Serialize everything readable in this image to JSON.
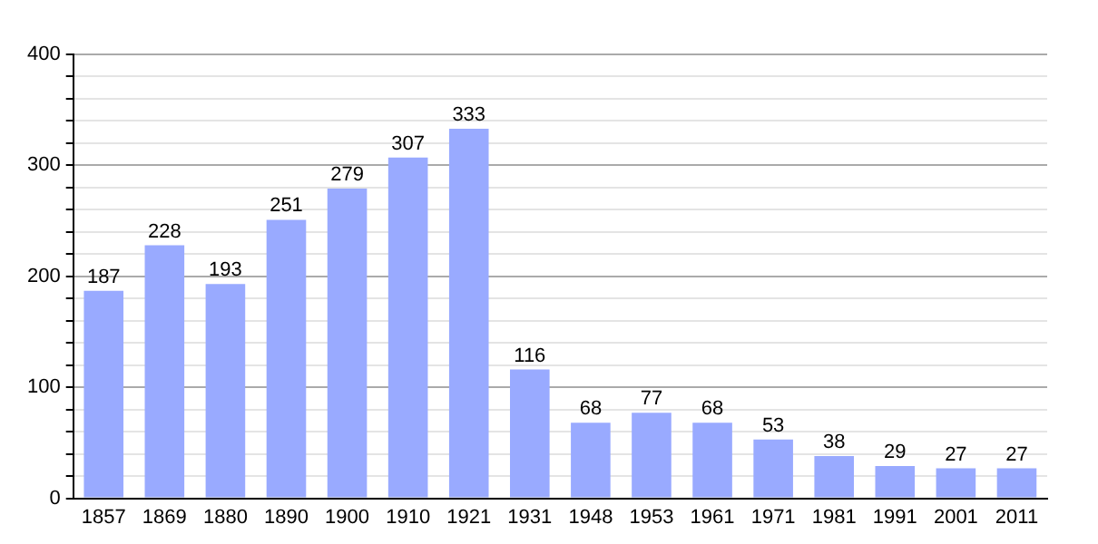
{
  "chart_data": {
    "type": "bar",
    "categories": [
      "1857",
      "1869",
      "1880",
      "1890",
      "1900",
      "1910",
      "1921",
      "1931",
      "1948",
      "1953",
      "1961",
      "1971",
      "1981",
      "1991",
      "2001",
      "2011"
    ],
    "values": [
      187,
      228,
      193,
      251,
      279,
      307,
      333,
      116,
      68,
      77,
      68,
      53,
      38,
      29,
      27,
      27
    ],
    "color": "#99aaff",
    "ylim": [
      0,
      400
    ],
    "yticks": [
      0,
      {
        "value": 20,
        "label": null
      },
      {
        "value": 40,
        "label": null
      },
      {
        "value": 60,
        "label": null
      },
      {
        "value": 80,
        "label": null
      },
      100,
      {
        "value": 120,
        "label": null
      },
      {
        "value": 140,
        "label": null
      },
      {
        "value": 160,
        "label": null
      },
      {
        "value": 180,
        "label": null
      },
      200,
      {
        "value": 220,
        "label": null
      },
      {
        "value": 240,
        "label": null
      },
      {
        "value": 260,
        "label": null
      },
      {
        "value": 280,
        "label": null
      },
      300,
      {
        "value": 320,
        "label": null
      },
      {
        "value": 340,
        "label": null
      },
      {
        "value": 360,
        "label": null
      },
      {
        "value": 380,
        "label": null
      },
      400
    ],
    "grid": "y",
    "data_labels": true,
    "legend": false
  }
}
